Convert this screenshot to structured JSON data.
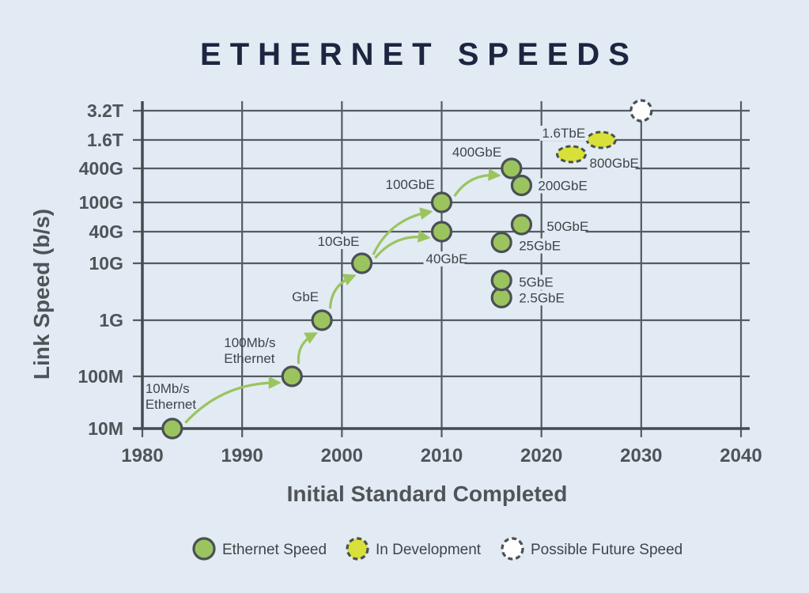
{
  "chart_data": {
    "type": "scatter",
    "title": "ETHERNET SPEEDS",
    "xlabel": "Initial Standard Completed",
    "ylabel": "Link Speed (b/s)",
    "x_ticks": [
      "1980",
      "1990",
      "2000",
      "2010",
      "2020",
      "2030",
      "2040"
    ],
    "xlim": [
      1980,
      2040
    ],
    "y_scale": "log",
    "y_ticks": [
      {
        "label": "10M",
        "value": 10000000
      },
      {
        "label": "100M",
        "value": 100000000
      },
      {
        "label": "1G",
        "value": 1000000000
      },
      {
        "label": "10G",
        "value": 10000000000
      },
      {
        "label": "40G",
        "value": 40000000000
      },
      {
        "label": "100G",
        "value": 100000000000
      },
      {
        "label": "400G",
        "value": 400000000000
      },
      {
        "label": "1.6T",
        "value": 1600000000000
      },
      {
        "label": "3.2T",
        "value": 3200000000000
      }
    ],
    "grid": true,
    "legend_position": "bottom",
    "series": [
      {
        "name": "Ethernet Speed",
        "color": "#9bc45f",
        "points": [
          {
            "label": "10Mb/s Ethernet",
            "x": 1983,
            "y": 10000000
          },
          {
            "label": "100Mb/s Ethernet",
            "x": 1995,
            "y": 100000000
          },
          {
            "label": "GbE",
            "x": 1998,
            "y": 1000000000
          },
          {
            "label": "10GbE",
            "x": 2002,
            "y": 10000000000
          },
          {
            "label": "40GbE",
            "x": 2010,
            "y": 40000000000
          },
          {
            "label": "100GbE",
            "x": 2010,
            "y": 100000000000
          },
          {
            "label": "2.5GbE",
            "x": 2016,
            "y": 2500000000
          },
          {
            "label": "5GbE",
            "x": 2016,
            "y": 5000000000
          },
          {
            "label": "25GbE",
            "x": 2016,
            "y": 25000000000
          },
          {
            "label": "50GbE",
            "x": 2018,
            "y": 50000000000
          },
          {
            "label": "200GbE",
            "x": 2018,
            "y": 200000000000
          },
          {
            "label": "400GbE",
            "x": 2017,
            "y": 400000000000
          }
        ]
      },
      {
        "name": "In Development",
        "color": "#d8e03a",
        "points": [
          {
            "label": "800GbE",
            "x": 2023,
            "y": 800000000000
          },
          {
            "label": "1.6TbE",
            "x": 2026,
            "y": 1600000000000
          }
        ]
      },
      {
        "name": "Possible Future Speed",
        "color": "#ffffff",
        "points": [
          {
            "label": "",
            "x": 2030,
            "y": 3200000000000
          }
        ]
      }
    ],
    "arrows": [
      {
        "from": "10Mb/s Ethernet",
        "to": "100Mb/s Ethernet"
      },
      {
        "from": "100Mb/s Ethernet",
        "to": "GbE"
      },
      {
        "from": "GbE",
        "to": "10GbE"
      },
      {
        "from": "10GbE",
        "to": "100GbE"
      },
      {
        "from": "10GbE",
        "to": "40GbE"
      },
      {
        "from": "100GbE",
        "to": "400GbE"
      }
    ]
  }
}
